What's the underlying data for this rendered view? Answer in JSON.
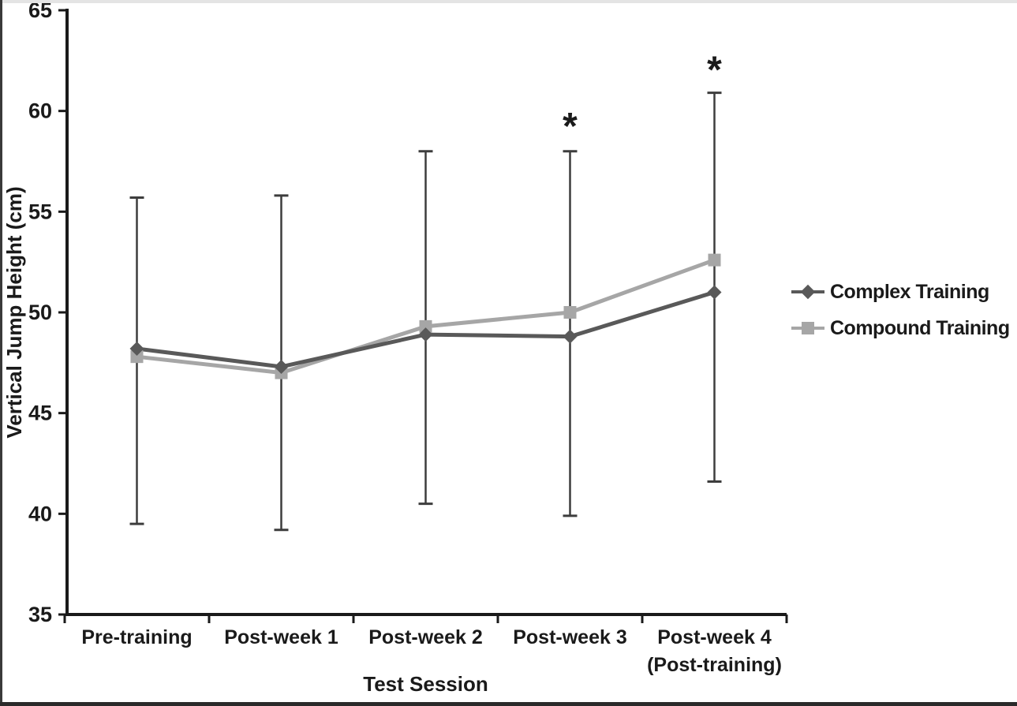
{
  "figure": {
    "background": "#ffffff",
    "edge_colors": {
      "top": "#e4e4e4",
      "left": "#3a3a3a",
      "bottom": "#2a2a2a"
    }
  },
  "chart_data": {
    "type": "line",
    "title": "",
    "xlabel": "Test Session",
    "ylabel": "Vertical Jump Height (cm)",
    "ylim": [
      35,
      65
    ],
    "yticks": [
      35,
      40,
      45,
      50,
      55,
      60,
      65
    ],
    "grid": false,
    "legend_position": "right",
    "axis_color": "#1a1a1a",
    "text_color": "#1a1a1a",
    "categories": [
      {
        "label": "Pre-training",
        "sublabel": ""
      },
      {
        "label": "Post-week 1",
        "sublabel": ""
      },
      {
        "label": "Post-week 2",
        "sublabel": ""
      },
      {
        "label": "Post-week 3",
        "sublabel": ""
      },
      {
        "label": "Post-week 4",
        "sublabel": "(Post-training)"
      }
    ],
    "series": [
      {
        "name": "Complex Training",
        "marker": "diamond",
        "color": "#595959",
        "values": [
          48.2,
          47.3,
          48.9,
          48.8,
          51.0
        ]
      },
      {
        "name": "Compound Training",
        "marker": "square",
        "color": "#a6a6a6",
        "values": [
          47.8,
          47.0,
          49.3,
          50.0,
          52.6
        ]
      }
    ],
    "error_bars": {
      "color": "#3d3d3d",
      "low": [
        39.5,
        39.2,
        40.5,
        39.9,
        41.6
      ],
      "high": [
        55.7,
        55.8,
        58.0,
        58.0,
        60.9
      ]
    },
    "annotations": [
      {
        "symbol": "*",
        "category_index": 3,
        "value": 59.4
      },
      {
        "symbol": "*",
        "category_index": 4,
        "value": 62.2
      }
    ]
  }
}
